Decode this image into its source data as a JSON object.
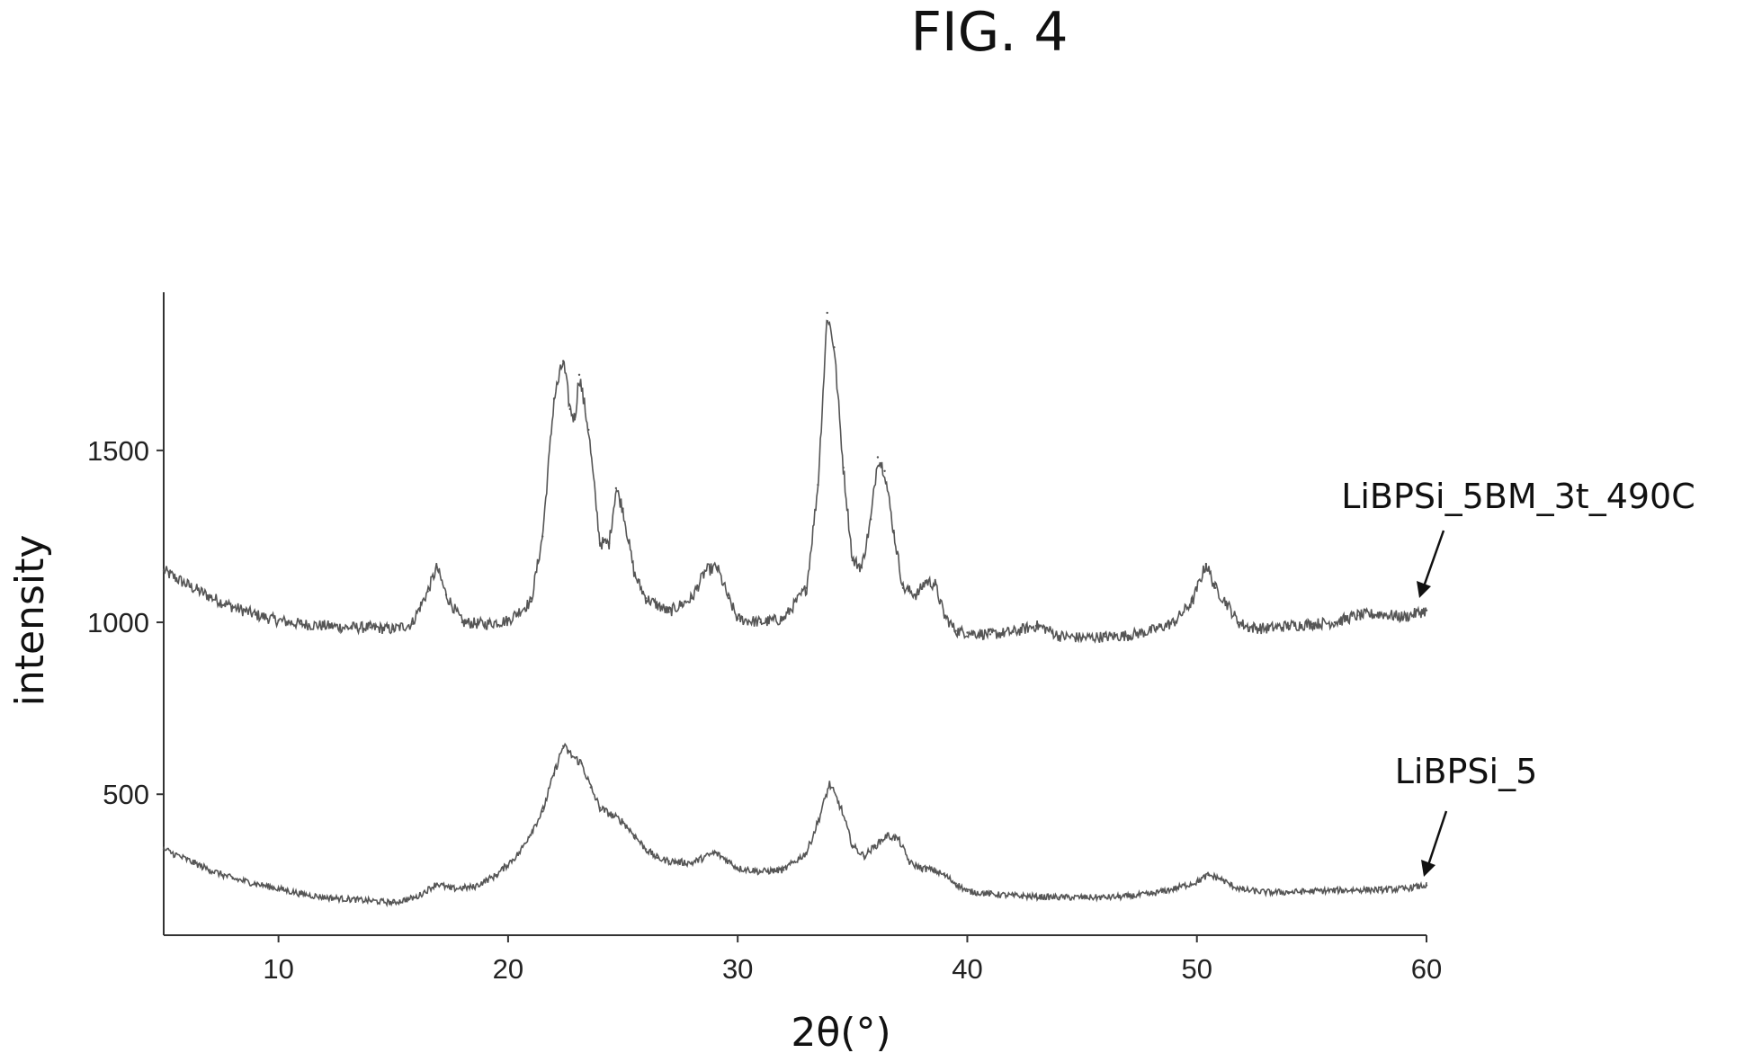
{
  "figure_label": "FIG. 4",
  "chart_data": {
    "type": "line",
    "title": "",
    "xlabel": "2θ(°)",
    "ylabel": "intensity",
    "xlim": [
      5,
      60
    ],
    "ylim": [
      90,
      1960
    ],
    "x_ticks": [
      10,
      20,
      30,
      40,
      50,
      60
    ],
    "y_ticks": [
      500,
      1000,
      1500
    ],
    "grid": false,
    "series": [
      {
        "name": "LiBPSi_5BM_3t_490C",
        "color": "#555555",
        "x": [
          5,
          6,
          7,
          8,
          9,
          10,
          11,
          12,
          13,
          14,
          15,
          15.8,
          16.5,
          16.9,
          17.3,
          18,
          19,
          20,
          21,
          21.5,
          22,
          22.4,
          22.7,
          22.9,
          23.1,
          23.5,
          24,
          24.4,
          24.7,
          25,
          25.5,
          26,
          27,
          28,
          28.6,
          29.1,
          29.6,
          30,
          31,
          32,
          33,
          33.5,
          33.9,
          34.2,
          34.6,
          35,
          35.4,
          35.8,
          36.1,
          36.4,
          36.8,
          37.2,
          37.8,
          38.2,
          38.6,
          39,
          39.5,
          40,
          41,
          42,
          43,
          43.4,
          44,
          45,
          46,
          47,
          48,
          49,
          49.8,
          50.4,
          50.8,
          51.3,
          51.8,
          52.3,
          53,
          54,
          55,
          56,
          57,
          58,
          59,
          60
        ],
        "values": [
          1150,
          1110,
          1075,
          1045,
          1022,
          1005,
          995,
          990,
          985,
          985,
          980,
          995,
          1090,
          1160,
          1080,
          1000,
          995,
          1005,
          1060,
          1250,
          1650,
          1760,
          1620,
          1590,
          1720,
          1560,
          1230,
          1230,
          1390,
          1330,
          1140,
          1070,
          1030,
          1070,
          1150,
          1160,
          1070,
          1010,
          1000,
          1010,
          1100,
          1400,
          1900,
          1800,
          1450,
          1180,
          1160,
          1300,
          1480,
          1440,
          1260,
          1100,
          1080,
          1120,
          1110,
          1020,
          975,
          970,
          965,
          972,
          990,
          982,
          960,
          955,
          958,
          962,
          975,
          1000,
          1060,
          1170,
          1100,
          1055,
          1000,
          985,
          982,
          990,
          995,
          1000,
          1020,
          1025,
          1015,
          1035
        ]
      },
      {
        "name": "LiBPSi_5",
        "color": "#555555",
        "x": [
          5,
          6,
          7,
          8,
          9,
          10,
          11,
          12,
          13,
          14,
          15,
          16,
          16.9,
          17.5,
          18.5,
          19.5,
          20.5,
          21.5,
          22,
          22.4,
          22.8,
          23.2,
          23.6,
          24,
          24.5,
          25,
          25.5,
          26,
          26.5,
          27,
          28,
          29,
          29.5,
          30,
          31,
          32,
          33,
          33.5,
          34,
          34.5,
          35,
          35.5,
          36,
          36.5,
          37,
          37.5,
          38,
          38.5,
          39,
          39.5,
          40,
          41,
          42,
          43,
          44,
          45,
          46,
          47,
          48,
          49,
          50,
          50.5,
          51,
          51.5,
          52,
          53,
          54,
          55,
          56,
          57,
          58,
          59,
          60
        ],
        "values": [
          340,
          310,
          280,
          255,
          240,
          225,
          210,
          200,
          195,
          190,
          185,
          200,
          240,
          225,
          230,
          265,
          330,
          450,
          560,
          640,
          610,
          590,
          520,
          460,
          440,
          420,
          380,
          340,
          315,
          305,
          300,
          330,
          310,
          285,
          275,
          280,
          330,
          420,
          530,
          460,
          350,
          320,
          350,
          380,
          370,
          300,
          285,
          280,
          265,
          240,
          218,
          210,
          205,
          202,
          200,
          200,
          200,
          203,
          210,
          225,
          245,
          265,
          255,
          235,
          222,
          215,
          215,
          218,
          220,
          222,
          222,
          225,
          235
        ]
      }
    ]
  }
}
